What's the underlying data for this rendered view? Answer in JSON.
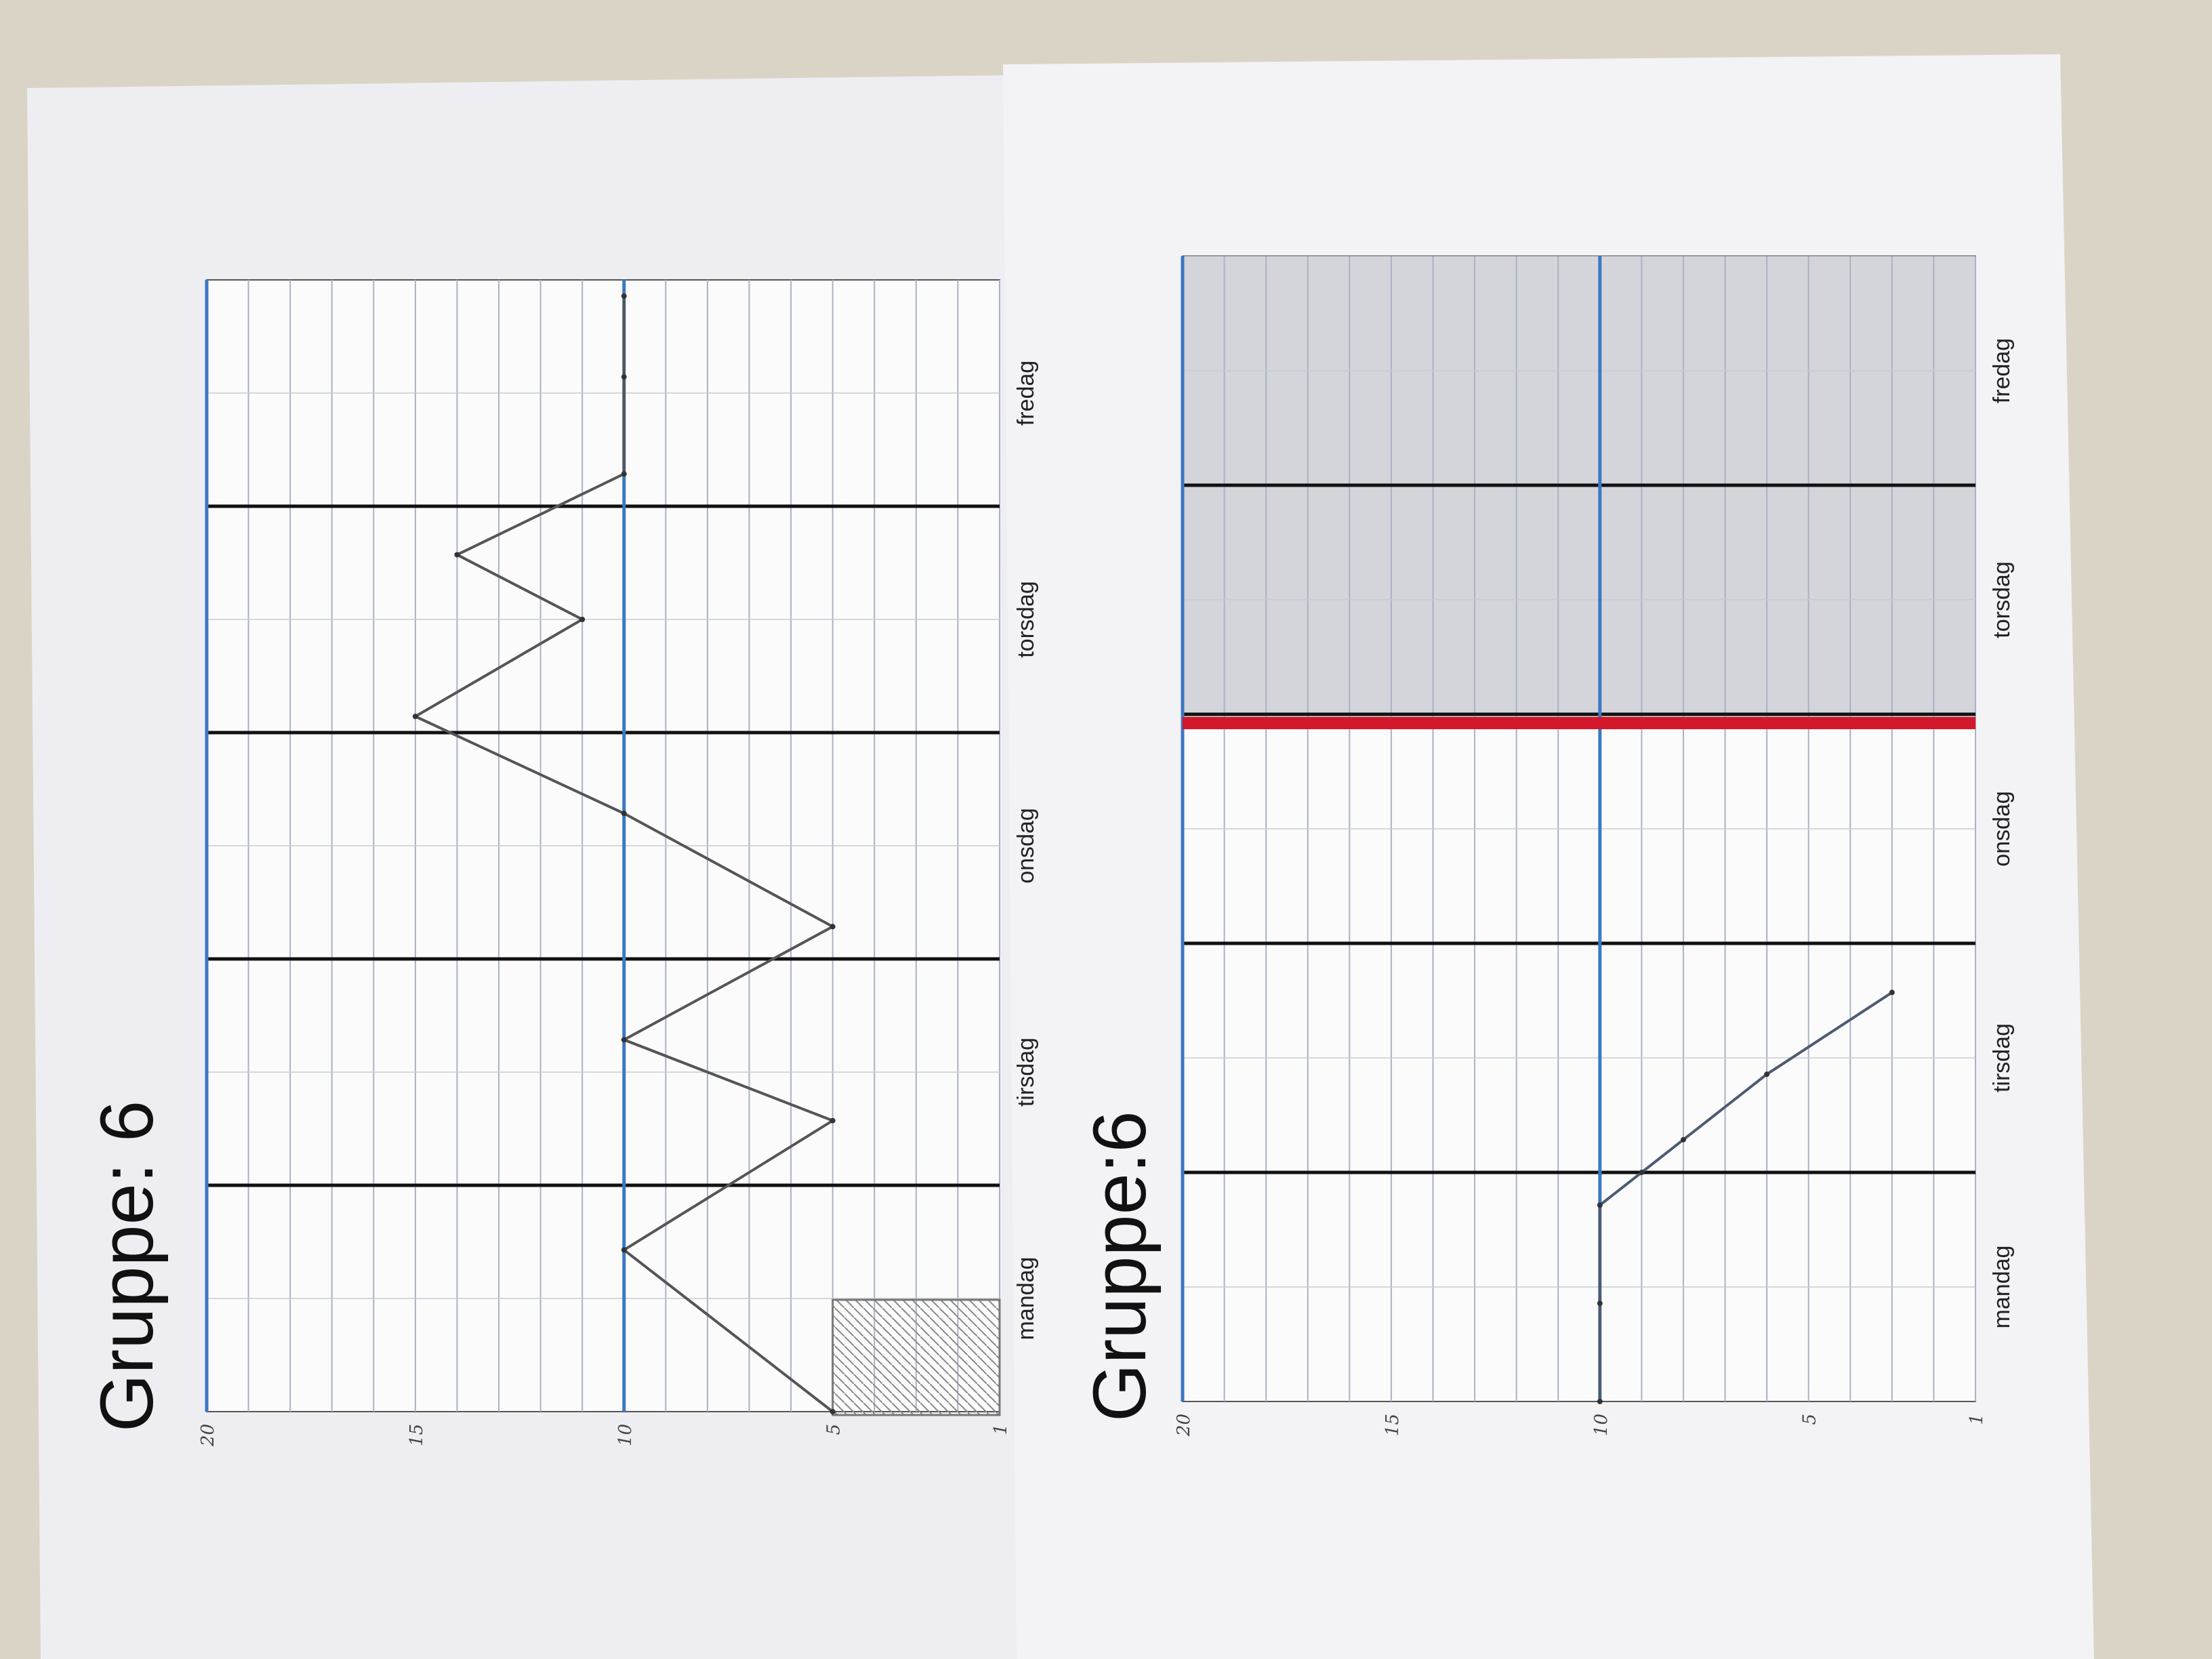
{
  "chart_data": [
    {
      "type": "line",
      "title": "Gruppe: 6",
      "categories": [
        "mandag",
        "tirsdag",
        "onsdag",
        "torsdag",
        "fredag"
      ],
      "y_tick_labels": [
        "20",
        "15",
        "10",
        "5",
        "1"
      ],
      "ylim": [
        1,
        20
      ],
      "reference_line": 10,
      "series": [
        {
          "x": [
            0,
            1,
            1.8,
            2.3,
            3.0,
            3.7,
            4.3,
            4.9,
            5.3,
            5.8,
            6.4,
            6.9
          ],
          "values": [
            5,
            10,
            5,
            10,
            5,
            10,
            15,
            11,
            14,
            10,
            10,
            10
          ]
        }
      ],
      "shaded_bar": {
        "x": [
          0,
          1
        ],
        "value": 5
      }
    },
    {
      "type": "line",
      "title": "Gruppe:6",
      "categories": [
        "mandag",
        "tirsdag",
        "onsdag",
        "torsdag",
        "fredag"
      ],
      "y_tick_labels": [
        "20",
        "15",
        "10",
        "5",
        "1"
      ],
      "ylim": [
        1,
        20
      ],
      "reference_line": 10,
      "series": [
        {
          "x": [
            0.0,
            0.6,
            1.2,
            1.4,
            1.6,
            2.0,
            2.5
          ],
          "values": [
            10,
            10,
            10,
            9,
            8,
            6,
            3
          ]
        }
      ]
    }
  ]
}
